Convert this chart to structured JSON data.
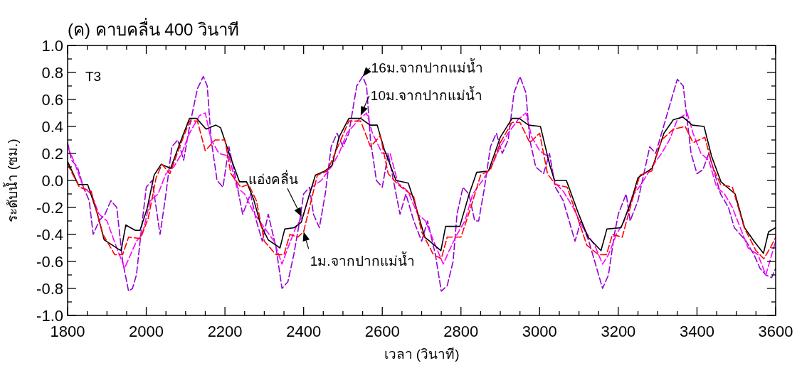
{
  "chart_data": {
    "type": "line",
    "title": "(ค) คาบคลื่น 400 วินาที",
    "xlabel": "เวลา (วินาที)",
    "ylabel": "ระดับน้ำ (ซม.)",
    "xlim": [
      1800,
      3600
    ],
    "ylim": [
      -1.0,
      1.0
    ],
    "xticks": [
      1800,
      {
        "value": 1850,
        "label": null
      },
      {
        "value": 1900,
        "label": null
      },
      {
        "value": 1950,
        "label": null
      },
      2000,
      {
        "value": 2050,
        "label": null
      },
      {
        "value": 2100,
        "label": null
      },
      {
        "value": 2150,
        "label": null
      },
      2200,
      {
        "value": 2250,
        "label": null
      },
      {
        "value": 2300,
        "label": null
      },
      {
        "value": 2350,
        "label": null
      },
      2400,
      {
        "value": 2450,
        "label": null
      },
      {
        "value": 2500,
        "label": null
      },
      {
        "value": 2550,
        "label": null
      },
      2600,
      {
        "value": 2650,
        "label": null
      },
      {
        "value": 2700,
        "label": null
      },
      {
        "value": 2750,
        "label": null
      },
      2800,
      {
        "value": 2850,
        "label": null
      },
      {
        "value": 2900,
        "label": null
      },
      {
        "value": 2950,
        "label": null
      },
      3000,
      {
        "value": 3050,
        "label": null
      },
      {
        "value": 3100,
        "label": null
      },
      {
        "value": 3150,
        "label": null
      },
      3200,
      {
        "value": 3250,
        "label": null
      },
      {
        "value": 3300,
        "label": null
      },
      {
        "value": 3350,
        "label": null
      },
      3400,
      {
        "value": 3450,
        "label": null
      },
      {
        "value": 3500,
        "label": null
      },
      {
        "value": 3550,
        "label": null
      },
      3600
    ],
    "yticks": [
      {
        "value": -1.0,
        "label": "-1.0"
      },
      {
        "value": -0.9,
        "label": null
      },
      {
        "value": -0.8,
        "label": "-0.8"
      },
      {
        "value": -0.7,
        "label": null
      },
      {
        "value": -0.6,
        "label": "-0.6"
      },
      {
        "value": -0.5,
        "label": null
      },
      {
        "value": -0.4,
        "label": "-0.4"
      },
      {
        "value": -0.3,
        "label": null
      },
      {
        "value": -0.2,
        "label": "-0.2"
      },
      {
        "value": -0.1,
        "label": null
      },
      {
        "value": 0.0,
        "label": "0.0"
      },
      {
        "value": 0.1,
        "label": null
      },
      {
        "value": 0.2,
        "label": "0.2"
      },
      {
        "value": 0.3,
        "label": null
      },
      {
        "value": 0.4,
        "label": "0.4"
      },
      {
        "value": 0.5,
        "label": null
      },
      {
        "value": 0.6,
        "label": "0.6"
      },
      {
        "value": 0.7,
        "label": null
      },
      {
        "value": 0.8,
        "label": "0.8"
      },
      {
        "value": 0.9,
        "label": null
      },
      {
        "value": 1.0,
        "label": "1.0"
      }
    ],
    "grid": false,
    "marker": "none",
    "annotations": [
      "T3",
      {
        "text": "16ม.จากปากแม่น้ำ",
        "x": 2550,
        "y": 0.77
      },
      {
        "text": "10ม.จากปากแม่น้ำ",
        "x": 2545,
        "y": 0.48
      },
      {
        "text": "แอ่งคลื่น",
        "x": 2395,
        "y": -0.27
      },
      {
        "text": "1ม.จากปากแม่น้ำ",
        "x": 2400,
        "y": -0.38
      }
    ],
    "series": [
      {
        "color": "#9400d3",
        "line_style": "dashed",
        "x": [
          1800,
          1810,
          1825,
          1840,
          1855,
          1865,
          1880,
          1895,
          1910,
          1925,
          1940,
          1955,
          1965,
          1975,
          1990,
          2000,
          2015,
          2025,
          2035,
          2050,
          2065,
          2080,
          2095,
          2110,
          2130,
          2145,
          2155,
          2165,
          2180,
          2195,
          2210,
          2225,
          2245,
          2265,
          2280,
          2295,
          2310,
          2330,
          2345,
          2360,
          2375,
          2390,
          2400,
          2415,
          2425,
          2440,
          2455,
          2470,
          2485,
          2500,
          2515,
          2535,
          2550,
          2560,
          2570,
          2585,
          2600,
          2615,
          2625,
          2645,
          2660,
          2680,
          2700,
          2715,
          2735,
          2750,
          2765,
          2780,
          2790,
          2805,
          2820,
          2835,
          2845,
          2860,
          2875,
          2890,
          2905,
          2920,
          2935,
          2950,
          2965,
          2975,
          2990,
          3010,
          3025,
          3040,
          3060,
          3075,
          3090,
          3105,
          3125,
          3145,
          3160,
          3175,
          3190,
          3200,
          3220,
          3230,
          3250,
          3265,
          3280,
          3295,
          3310,
          3335,
          3350,
          3365,
          3375,
          3385,
          3400,
          3415,
          3430,
          3445,
          3460,
          3480,
          3495,
          3510,
          3525,
          3545,
          3560,
          3575,
          3590,
          3600
        ],
        "values": [
          0.28,
          0.15,
          0.1,
          -0.05,
          -0.15,
          -0.4,
          -0.3,
          -0.25,
          -0.15,
          -0.2,
          -0.6,
          -0.82,
          -0.8,
          -0.7,
          -0.3,
          -0.05,
          0.0,
          -0.2,
          -0.4,
          -0.1,
          0.25,
          0.3,
          0.15,
          0.4,
          0.68,
          0.77,
          0.7,
          0.3,
          0.0,
          -0.05,
          0.25,
          0.05,
          -0.25,
          -0.1,
          -0.3,
          -0.45,
          -0.25,
          -0.5,
          -0.8,
          -0.75,
          -0.55,
          -0.3,
          -0.1,
          -0.05,
          -0.25,
          -0.35,
          -0.1,
          0.25,
          0.35,
          0.25,
          0.35,
          0.7,
          0.77,
          0.7,
          0.3,
          0.0,
          -0.05,
          0.2,
          0.05,
          -0.25,
          -0.1,
          -0.3,
          -0.45,
          -0.3,
          -0.55,
          -0.82,
          -0.78,
          -0.6,
          -0.25,
          -0.05,
          -0.1,
          -0.3,
          -0.3,
          -0.05,
          0.25,
          0.35,
          0.2,
          0.3,
          0.65,
          0.77,
          0.65,
          0.3,
          0.1,
          0.05,
          0.2,
          -0.05,
          -0.15,
          -0.3,
          -0.45,
          -0.3,
          -0.45,
          -0.65,
          -0.8,
          -0.7,
          -0.4,
          -0.25,
          -0.1,
          -0.3,
          -0.15,
          0.05,
          0.25,
          0.2,
          0.35,
          0.6,
          0.75,
          0.7,
          0.45,
          0.2,
          0.05,
          0.08,
          0.2,
          0.05,
          -0.1,
          -0.2,
          -0.35,
          -0.4,
          -0.45,
          -0.55,
          -0.65,
          -0.7,
          -0.72,
          -0.65
        ]
      },
      {
        "color": "#ff00ff",
        "line_style": "dashed",
        "x": [
          1800,
          1815,
          1840,
          1860,
          1880,
          1900,
          1925,
          1945,
          1960,
          1975,
          1990,
          2010,
          2030,
          2050,
          2070,
          2090,
          2110,
          2135,
          2150,
          2165,
          2185,
          2210,
          2230,
          2250,
          2275,
          2300,
          2325,
          2345,
          2360,
          2380,
          2400,
          2420,
          2445,
          2470,
          2490,
          2510,
          2540,
          2560,
          2575,
          2600,
          2620,
          2640,
          2665,
          2690,
          2710,
          2735,
          2755,
          2770,
          2790,
          2810,
          2830,
          2855,
          2880,
          2900,
          2920,
          2945,
          2965,
          2980,
          3000,
          3020,
          3040,
          3060,
          3085,
          3110,
          3140,
          3160,
          3175,
          3195,
          3215,
          3235,
          3260,
          3285,
          3310,
          3330,
          3350,
          3375,
          3390,
          3410,
          3430,
          3450,
          3470,
          3490,
          3510,
          3530,
          3555,
          3575,
          3590,
          3600
        ],
        "values": [
          0.25,
          0.15,
          -0.05,
          -0.1,
          -0.25,
          -0.3,
          -0.5,
          -0.65,
          -0.55,
          -0.45,
          -0.4,
          -0.15,
          -0.1,
          0.05,
          0.1,
          0.2,
          0.35,
          0.48,
          0.5,
          0.3,
          0.2,
          0.18,
          -0.05,
          -0.1,
          -0.25,
          -0.35,
          -0.45,
          -0.62,
          -0.5,
          -0.35,
          -0.25,
          -0.05,
          0.0,
          0.1,
          0.2,
          0.35,
          0.45,
          0.5,
          0.35,
          0.2,
          0.2,
          -0.02,
          -0.08,
          -0.25,
          -0.3,
          -0.48,
          -0.62,
          -0.52,
          -0.4,
          -0.3,
          -0.1,
          0.0,
          0.12,
          0.25,
          0.35,
          0.45,
          0.5,
          0.32,
          0.22,
          0.18,
          -0.02,
          -0.08,
          -0.2,
          -0.35,
          -0.48,
          -0.62,
          -0.55,
          -0.4,
          -0.3,
          -0.12,
          -0.02,
          0.1,
          0.2,
          0.3,
          0.45,
          0.5,
          0.35,
          0.2,
          0.15,
          -0.05,
          -0.1,
          -0.2,
          -0.35,
          -0.5,
          -0.55,
          -0.7,
          -0.55,
          -0.45
        ]
      },
      {
        "color": "#000000",
        "line_style": "solid",
        "x": [
          1800,
          1827,
          1851,
          1875,
          1893,
          1930,
          1936,
          1948,
          1972,
          1984,
          2002,
          2020,
          2038,
          2062,
          2086,
          2110,
          2128,
          2152,
          2177,
          2189,
          2213,
          2237,
          2255,
          2273,
          2291,
          2310,
          2340,
          2352,
          2376,
          2394,
          2406,
          2430,
          2454,
          2472,
          2490,
          2515,
          2545,
          2569,
          2587,
          2605,
          2635,
          2666,
          2683,
          2708,
          2729,
          2749,
          2761,
          2797,
          2821,
          2840,
          2870,
          2900,
          2930,
          2948,
          2972,
          3002,
          3026,
          3038,
          3068,
          3098,
          3123,
          3156,
          3171,
          3207,
          3231,
          3250,
          3286,
          3316,
          3340,
          3364,
          3388,
          3418,
          3437,
          3461,
          3497,
          3521,
          3545,
          3569,
          3582,
          3600
        ],
        "values": [
          0.14,
          -0.03,
          -0.03,
          -0.24,
          -0.44,
          -0.51,
          -0.52,
          -0.33,
          -0.37,
          -0.37,
          -0.21,
          0.04,
          0.12,
          0.09,
          0.28,
          0.46,
          0.46,
          0.38,
          0.41,
          0.39,
          0.18,
          -0.01,
          -0.01,
          -0.14,
          -0.33,
          -0.44,
          -0.5,
          -0.36,
          -0.35,
          -0.31,
          -0.19,
          0.04,
          0.07,
          0.11,
          0.32,
          0.46,
          0.46,
          0.41,
          0.41,
          0.23,
          0.0,
          -0.02,
          -0.17,
          -0.42,
          -0.47,
          -0.52,
          -0.34,
          -0.34,
          -0.1,
          0.06,
          0.07,
          0.32,
          0.46,
          0.46,
          0.41,
          0.4,
          0.11,
          0.0,
          0.0,
          -0.24,
          -0.42,
          -0.52,
          -0.36,
          -0.35,
          -0.17,
          0.02,
          0.09,
          0.35,
          0.45,
          0.47,
          0.41,
          0.4,
          0.18,
          -0.01,
          -0.1,
          -0.35,
          -0.45,
          -0.54,
          -0.38,
          -0.35
        ]
      },
      {
        "color": "#ff0000",
        "line_style": "dashed",
        "x": [
          1800,
          1830,
          1860,
          1890,
          1920,
          1940,
          1955,
          1985,
          2005,
          2025,
          2040,
          2060,
          2085,
          2110,
          2130,
          2150,
          2175,
          2200,
          2215,
          2240,
          2260,
          2280,
          2300,
          2330,
          2350,
          2365,
          2385,
          2400,
          2415,
          2435,
          2460,
          2490,
          2515,
          2545,
          2570,
          2595,
          2615,
          2640,
          2680,
          2700,
          2730,
          2750,
          2765,
          2800,
          2825,
          2850,
          2875,
          2900,
          2930,
          2950,
          2975,
          3000,
          3020,
          3040,
          3070,
          3090,
          3120,
          3150,
          3170,
          3185,
          3210,
          3235,
          3255,
          3285,
          3310,
          3340,
          3370,
          3390,
          3420,
          3440,
          3460,
          3490,
          3520,
          3550,
          3570,
          3590,
          3600
        ],
        "values": [
          0.12,
          -0.05,
          -0.08,
          -0.4,
          -0.55,
          -0.55,
          -0.42,
          -0.43,
          -0.28,
          0.02,
          0.12,
          0.05,
          0.25,
          0.44,
          0.44,
          0.22,
          0.3,
          0.3,
          0.05,
          -0.05,
          -0.03,
          -0.15,
          -0.45,
          -0.55,
          -0.55,
          -0.4,
          -0.42,
          -0.38,
          -0.2,
          0.04,
          0.07,
          0.27,
          0.44,
          0.44,
          0.25,
          0.33,
          0.05,
          -0.03,
          -0.12,
          -0.38,
          -0.55,
          -0.58,
          -0.42,
          -0.42,
          -0.2,
          0.04,
          0.08,
          0.28,
          0.43,
          0.43,
          0.28,
          0.35,
          0.05,
          -0.03,
          -0.05,
          -0.22,
          -0.48,
          -0.55,
          -0.55,
          -0.4,
          -0.42,
          -0.15,
          0.04,
          0.07,
          0.3,
          0.38,
          0.4,
          0.28,
          0.32,
          0.1,
          -0.03,
          -0.05,
          -0.35,
          -0.52,
          -0.58,
          -0.48,
          -0.42
        ]
      }
    ]
  }
}
